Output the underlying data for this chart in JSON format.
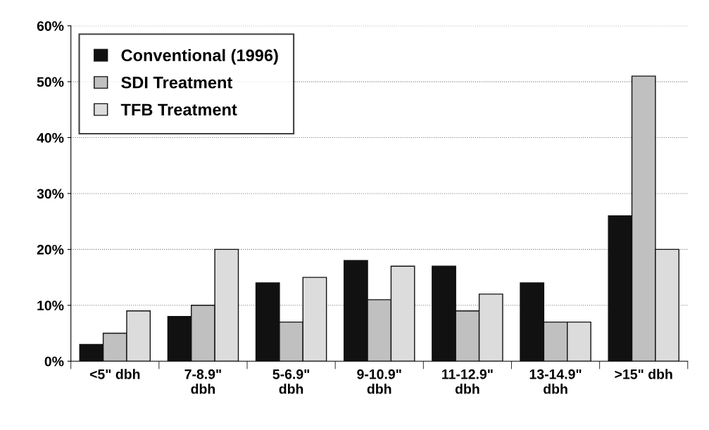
{
  "chart_data": {
    "type": "bar",
    "categories": [
      "<5\" dbh",
      "7-8.9\"\ndbh",
      "5-6.9\"\ndbh",
      "9-10.9\"\ndbh",
      "11-12.9\"\ndbh",
      "13-14.9\"\ndbh",
      ">15\" dbh"
    ],
    "series": [
      {
        "name": "Conventional (1996)",
        "color": "#111111",
        "values": [
          3,
          8,
          14,
          18,
          17,
          14,
          26
        ]
      },
      {
        "name": "SDI Treatment",
        "color": "#c0c0c0",
        "values": [
          5,
          10,
          7,
          11,
          9,
          7,
          51
        ]
      },
      {
        "name": "TFB Treatment",
        "color": "#dcdcdc",
        "values": [
          9,
          20,
          15,
          17,
          12,
          7,
          20
        ]
      }
    ],
    "ylim": [
      0,
      60
    ],
    "yticks": [
      {
        "value": 0,
        "label": "0%"
      },
      {
        "value": 10,
        "label": "10%"
      },
      {
        "value": 20,
        "label": "20%"
      },
      {
        "value": 30,
        "label": "30%"
      },
      {
        "value": 40,
        "label": "40%"
      },
      {
        "value": 50,
        "label": "50%"
      },
      {
        "value": 60,
        "label": "60%"
      }
    ],
    "grid": "y",
    "legend": "top left"
  }
}
